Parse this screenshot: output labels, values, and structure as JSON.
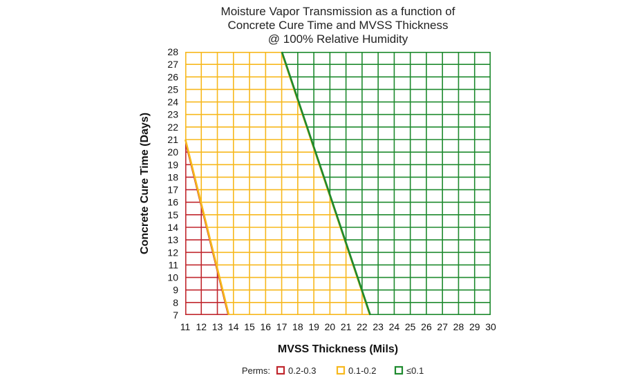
{
  "chart_data": {
    "type": "area",
    "title": [
      "Moisture Vapor Transmission as a function of",
      "Concrete Cure Time and MVSS Thickness",
      "@ 100% Relative Humidity"
    ],
    "xlabel": "MVSS Thickness (Mils)",
    "ylabel": "Concrete Cure Time (Days)",
    "xlim": [
      11,
      30
    ],
    "ylim": [
      7,
      28
    ],
    "x_ticks": [
      "11",
      "12",
      "13",
      "14",
      "15",
      "16",
      "17",
      "18",
      "19",
      "20",
      "21",
      "22",
      "23",
      "24",
      "25",
      "26",
      "27",
      "28",
      "29",
      "30"
    ],
    "y_ticks": [
      "7",
      "8",
      "9",
      "10",
      "11",
      "12",
      "13",
      "14",
      "15",
      "16",
      "17",
      "18",
      "19",
      "20",
      "21",
      "22",
      "23",
      "24",
      "25",
      "26",
      "27",
      "28"
    ],
    "grid": true,
    "legend": {
      "position": "bottom",
      "title": "Perms:",
      "entries": [
        "0.2-0.3",
        "0.1-0.2",
        "≤0.1"
      ]
    },
    "boundaries": [
      {
        "between": [
          "0.2-0.3",
          "0.1-0.2"
        ],
        "points": [
          [
            11,
            21
          ],
          [
            13.7,
            7
          ]
        ]
      },
      {
        "between": [
          "0.1-0.2",
          "≤0.1"
        ],
        "points": [
          [
            17,
            28
          ],
          [
            22.5,
            7
          ]
        ]
      }
    ],
    "series": [
      {
        "name": "0.2-0.3",
        "color": "#c0272d",
        "polygon": [
          [
            11,
            7
          ],
          [
            11,
            21
          ],
          [
            13.7,
            7
          ]
        ]
      },
      {
        "name": "0.1-0.2",
        "color": "#f7b81c",
        "polygon": [
          [
            11,
            21
          ],
          [
            11,
            28
          ],
          [
            17,
            28
          ],
          [
            22.5,
            7
          ],
          [
            13.7,
            7
          ]
        ]
      },
      {
        "name": "≤0.1",
        "color": "#1e8a2e",
        "polygon": [
          [
            17,
            28
          ],
          [
            30,
            28
          ],
          [
            30,
            7
          ],
          [
            22.5,
            7
          ]
        ]
      }
    ]
  }
}
